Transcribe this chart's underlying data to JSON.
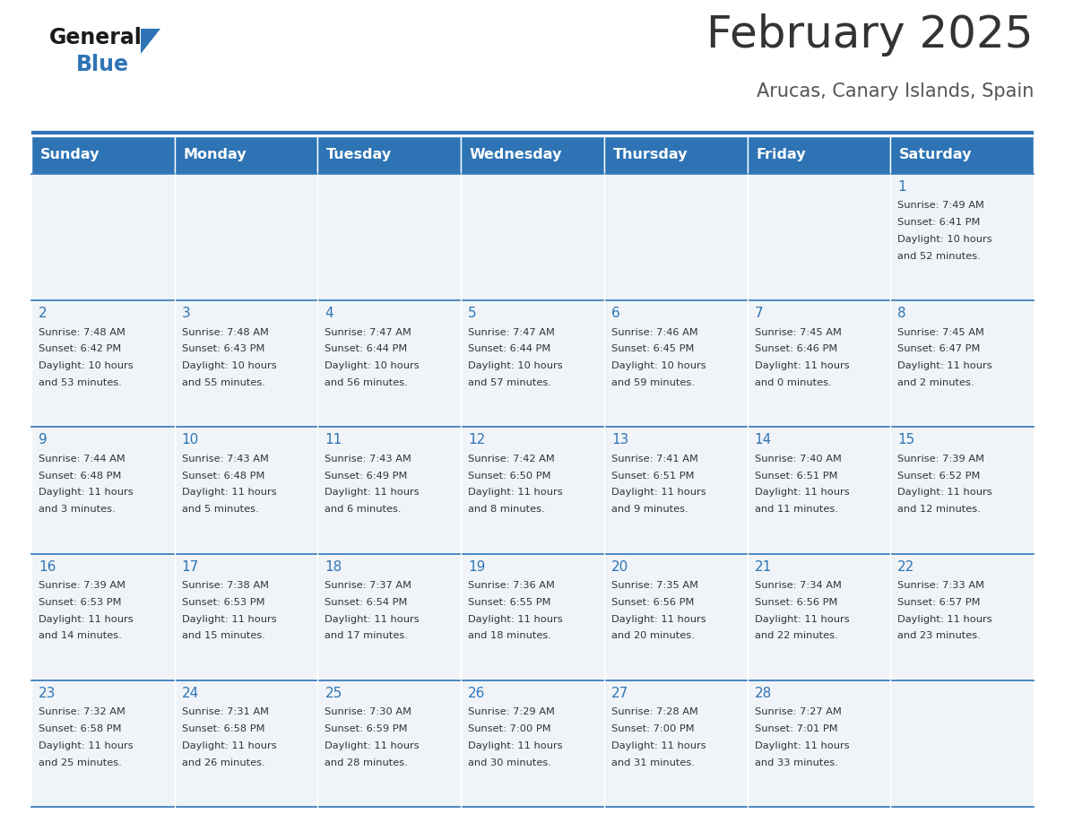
{
  "title": "February 2025",
  "subtitle": "Arucas, Canary Islands, Spain",
  "header_color": "#2E74B5",
  "header_text_color": "#FFFFFF",
  "cell_bg_color": "#F0F4F8",
  "text_color": "#333333",
  "day_number_color": "#2E74B5",
  "line_color": "#2E74B5",
  "days_of_week": [
    "Sunday",
    "Monday",
    "Tuesday",
    "Wednesday",
    "Thursday",
    "Friday",
    "Saturday"
  ],
  "calendar_data": [
    [
      null,
      null,
      null,
      null,
      null,
      null,
      {
        "day": 1,
        "sunrise": "7:49 AM",
        "sunset": "6:41 PM",
        "daylight_line1": "Daylight: 10 hours",
        "daylight_line2": "and 52 minutes."
      }
    ],
    [
      {
        "day": 2,
        "sunrise": "7:48 AM",
        "sunset": "6:42 PM",
        "daylight_line1": "Daylight: 10 hours",
        "daylight_line2": "and 53 minutes."
      },
      {
        "day": 3,
        "sunrise": "7:48 AM",
        "sunset": "6:43 PM",
        "daylight_line1": "Daylight: 10 hours",
        "daylight_line2": "and 55 minutes."
      },
      {
        "day": 4,
        "sunrise": "7:47 AM",
        "sunset": "6:44 PM",
        "daylight_line1": "Daylight: 10 hours",
        "daylight_line2": "and 56 minutes."
      },
      {
        "day": 5,
        "sunrise": "7:47 AM",
        "sunset": "6:44 PM",
        "daylight_line1": "Daylight: 10 hours",
        "daylight_line2": "and 57 minutes."
      },
      {
        "day": 6,
        "sunrise": "7:46 AM",
        "sunset": "6:45 PM",
        "daylight_line1": "Daylight: 10 hours",
        "daylight_line2": "and 59 minutes."
      },
      {
        "day": 7,
        "sunrise": "7:45 AM",
        "sunset": "6:46 PM",
        "daylight_line1": "Daylight: 11 hours",
        "daylight_line2": "and 0 minutes."
      },
      {
        "day": 8,
        "sunrise": "7:45 AM",
        "sunset": "6:47 PM",
        "daylight_line1": "Daylight: 11 hours",
        "daylight_line2": "and 2 minutes."
      }
    ],
    [
      {
        "day": 9,
        "sunrise": "7:44 AM",
        "sunset": "6:48 PM",
        "daylight_line1": "Daylight: 11 hours",
        "daylight_line2": "and 3 minutes."
      },
      {
        "day": 10,
        "sunrise": "7:43 AM",
        "sunset": "6:48 PM",
        "daylight_line1": "Daylight: 11 hours",
        "daylight_line2": "and 5 minutes."
      },
      {
        "day": 11,
        "sunrise": "7:43 AM",
        "sunset": "6:49 PM",
        "daylight_line1": "Daylight: 11 hours",
        "daylight_line2": "and 6 minutes."
      },
      {
        "day": 12,
        "sunrise": "7:42 AM",
        "sunset": "6:50 PM",
        "daylight_line1": "Daylight: 11 hours",
        "daylight_line2": "and 8 minutes."
      },
      {
        "day": 13,
        "sunrise": "7:41 AM",
        "sunset": "6:51 PM",
        "daylight_line1": "Daylight: 11 hours",
        "daylight_line2": "and 9 minutes."
      },
      {
        "day": 14,
        "sunrise": "7:40 AM",
        "sunset": "6:51 PM",
        "daylight_line1": "Daylight: 11 hours",
        "daylight_line2": "and 11 minutes."
      },
      {
        "day": 15,
        "sunrise": "7:39 AM",
        "sunset": "6:52 PM",
        "daylight_line1": "Daylight: 11 hours",
        "daylight_line2": "and 12 minutes."
      }
    ],
    [
      {
        "day": 16,
        "sunrise": "7:39 AM",
        "sunset": "6:53 PM",
        "daylight_line1": "Daylight: 11 hours",
        "daylight_line2": "and 14 minutes."
      },
      {
        "day": 17,
        "sunrise": "7:38 AM",
        "sunset": "6:53 PM",
        "daylight_line1": "Daylight: 11 hours",
        "daylight_line2": "and 15 minutes."
      },
      {
        "day": 18,
        "sunrise": "7:37 AM",
        "sunset": "6:54 PM",
        "daylight_line1": "Daylight: 11 hours",
        "daylight_line2": "and 17 minutes."
      },
      {
        "day": 19,
        "sunrise": "7:36 AM",
        "sunset": "6:55 PM",
        "daylight_line1": "Daylight: 11 hours",
        "daylight_line2": "and 18 minutes."
      },
      {
        "day": 20,
        "sunrise": "7:35 AM",
        "sunset": "6:56 PM",
        "daylight_line1": "Daylight: 11 hours",
        "daylight_line2": "and 20 minutes."
      },
      {
        "day": 21,
        "sunrise": "7:34 AM",
        "sunset": "6:56 PM",
        "daylight_line1": "Daylight: 11 hours",
        "daylight_line2": "and 22 minutes."
      },
      {
        "day": 22,
        "sunrise": "7:33 AM",
        "sunset": "6:57 PM",
        "daylight_line1": "Daylight: 11 hours",
        "daylight_line2": "and 23 minutes."
      }
    ],
    [
      {
        "day": 23,
        "sunrise": "7:32 AM",
        "sunset": "6:58 PM",
        "daylight_line1": "Daylight: 11 hours",
        "daylight_line2": "and 25 minutes."
      },
      {
        "day": 24,
        "sunrise": "7:31 AM",
        "sunset": "6:58 PM",
        "daylight_line1": "Daylight: 11 hours",
        "daylight_line2": "and 26 minutes."
      },
      {
        "day": 25,
        "sunrise": "7:30 AM",
        "sunset": "6:59 PM",
        "daylight_line1": "Daylight: 11 hours",
        "daylight_line2": "and 28 minutes."
      },
      {
        "day": 26,
        "sunrise": "7:29 AM",
        "sunset": "7:00 PM",
        "daylight_line1": "Daylight: 11 hours",
        "daylight_line2": "and 30 minutes."
      },
      {
        "day": 27,
        "sunrise": "7:28 AM",
        "sunset": "7:00 PM",
        "daylight_line1": "Daylight: 11 hours",
        "daylight_line2": "and 31 minutes."
      },
      {
        "day": 28,
        "sunrise": "7:27 AM",
        "sunset": "7:01 PM",
        "daylight_line1": "Daylight: 11 hours",
        "daylight_line2": "and 33 minutes."
      },
      null
    ]
  ]
}
